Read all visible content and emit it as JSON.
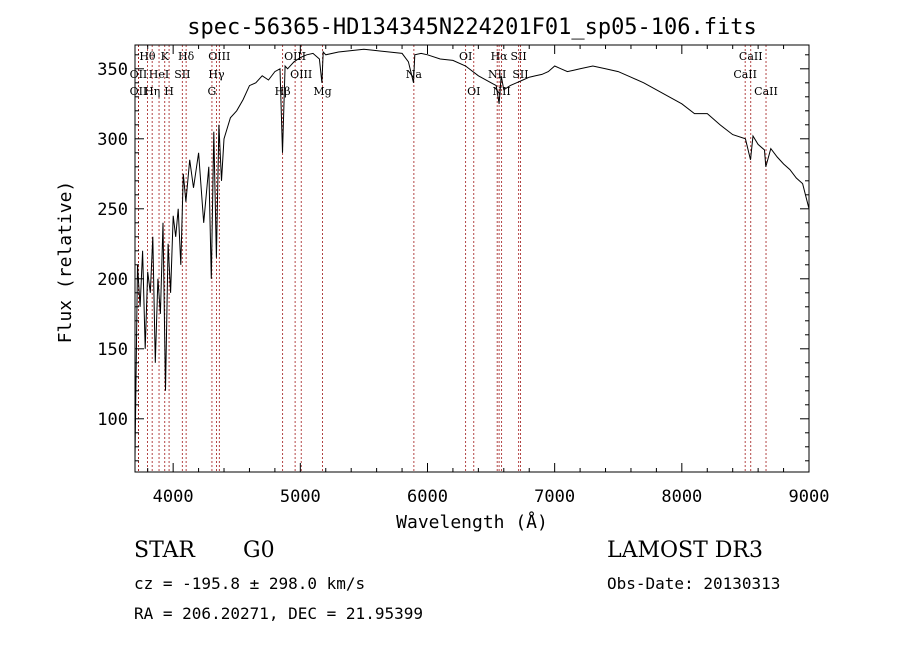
{
  "chart_data": {
    "type": "line",
    "title": "spec-56365-HD134345N224201F01_sp05-106.fits",
    "xlabel": "Wavelength (Å)",
    "ylabel": "Flux (relative)",
    "xlim": [
      3700,
      9000
    ],
    "ylim": [
      62,
      367
    ],
    "xticks": [
      4000,
      5000,
      6000,
      7000,
      8000,
      9000
    ],
    "yticks": [
      100,
      150,
      200,
      250,
      300,
      350
    ],
    "series": [
      {
        "name": "flux",
        "x": [
          3700,
          3720,
          3740,
          3760,
          3780,
          3800,
          3820,
          3840,
          3860,
          3880,
          3900,
          3920,
          3940,
          3960,
          3980,
          4000,
          4020,
          4040,
          4060,
          4080,
          4100,
          4130,
          4160,
          4200,
          4240,
          4280,
          4300,
          4320,
          4340,
          4360,
          4380,
          4400,
          4450,
          4500,
          4550,
          4600,
          4650,
          4700,
          4750,
          4800,
          4840,
          4860,
          4880,
          4900,
          4950,
          5000,
          5050,
          5100,
          5150,
          5170,
          5180,
          5200,
          5300,
          5400,
          5500,
          5600,
          5700,
          5800,
          5850,
          5890,
          5900,
          5950,
          6000,
          6100,
          6200,
          6300,
          6400,
          6500,
          6540,
          6563,
          6580,
          6600,
          6650,
          6700,
          6750,
          6800,
          6850,
          6900,
          6950,
          7000,
          7050,
          7100,
          7150,
          7200,
          7300,
          7400,
          7500,
          7600,
          7700,
          7800,
          7900,
          8000,
          8100,
          8200,
          8300,
          8400,
          8500,
          8540,
          8560,
          8600,
          8650,
          8660,
          8700,
          8750,
          8800,
          8850,
          8900,
          8950,
          9000
        ],
        "values": [
          72,
          210,
          180,
          220,
          150,
          205,
          190,
          230,
          140,
          200,
          175,
          240,
          120,
          225,
          190,
          245,
          230,
          250,
          210,
          275,
          255,
          285,
          265,
          290,
          240,
          280,
          200,
          305,
          215,
          310,
          270,
          300,
          315,
          320,
          328,
          338,
          340,
          345,
          342,
          348,
          350,
          290,
          352,
          350,
          355,
          358,
          360,
          361,
          357,
          340,
          362,
          360,
          362,
          363,
          364,
          363,
          362,
          361,
          355,
          340,
          360,
          361,
          360,
          357,
          356,
          352,
          345,
          340,
          338,
          325,
          345,
          335,
          338,
          340,
          342,
          344,
          345,
          346,
          348,
          352,
          350,
          348,
          349,
          350,
          352,
          350,
          348,
          344,
          340,
          335,
          330,
          325,
          318,
          318,
          310,
          303,
          300,
          285,
          302,
          296,
          292,
          280,
          293,
          287,
          282,
          278,
          272,
          268,
          250
        ]
      }
    ],
    "lines": [
      {
        "name": "Hθ",
        "wavelength": 3798,
        "row": 0
      },
      {
        "name": "K",
        "wavelength": 3934,
        "row": 0
      },
      {
        "name": "Hδ",
        "wavelength": 4102,
        "row": 0
      },
      {
        "name": "OIII",
        "wavelength": 4363,
        "row": 0
      },
      {
        "name": "OIII",
        "wavelength": 4959,
        "row": 0
      },
      {
        "name": "OI",
        "wavelength": 6300,
        "row": 0
      },
      {
        "name": "Hα",
        "wavelength": 6563,
        "row": 0
      },
      {
        "name": "SII",
        "wavelength": 6717,
        "row": 0
      },
      {
        "name": "CaII",
        "wavelength": 8542,
        "row": 0
      },
      {
        "name": "OII",
        "wavelength": 3727,
        "row": 1
      },
      {
        "name": "HeI",
        "wavelength": 3889,
        "row": 1
      },
      {
        "name": "SII",
        "wavelength": 4072,
        "row": 1
      },
      {
        "name": "Hγ",
        "wavelength": 4341,
        "row": 1
      },
      {
        "name": "OIII",
        "wavelength": 5007,
        "row": 1
      },
      {
        "name": "Na",
        "wavelength": 5893,
        "row": 1
      },
      {
        "name": "NII",
        "wavelength": 6548,
        "row": 1
      },
      {
        "name": "SII",
        "wavelength": 6731,
        "row": 1
      },
      {
        "name": "CaII",
        "wavelength": 8498,
        "row": 1
      },
      {
        "name": "OII",
        "wavelength": 3727,
        "row": 2
      },
      {
        "name": "Hη",
        "wavelength": 3835,
        "row": 2
      },
      {
        "name": "H",
        "wavelength": 3968,
        "row": 2
      },
      {
        "name": "G",
        "wavelength": 4305,
        "row": 2
      },
      {
        "name": "Hβ",
        "wavelength": 4861,
        "row": 2
      },
      {
        "name": "Mg",
        "wavelength": 5175,
        "row": 2
      },
      {
        "name": "OI",
        "wavelength": 6364,
        "row": 2
      },
      {
        "name": "NII",
        "wavelength": 6583,
        "row": 2
      },
      {
        "name": "CaII",
        "wavelength": 8662,
        "row": 2
      }
    ]
  },
  "info": {
    "class": "STAR",
    "subclass": "G0",
    "survey": "LAMOST DR3",
    "redshift": "cz = -195.8 ± 298.0 km/s",
    "obsdate": "Obs-Date: 20130313",
    "coords": "RA = 206.20271, DEC =  21.95399"
  }
}
